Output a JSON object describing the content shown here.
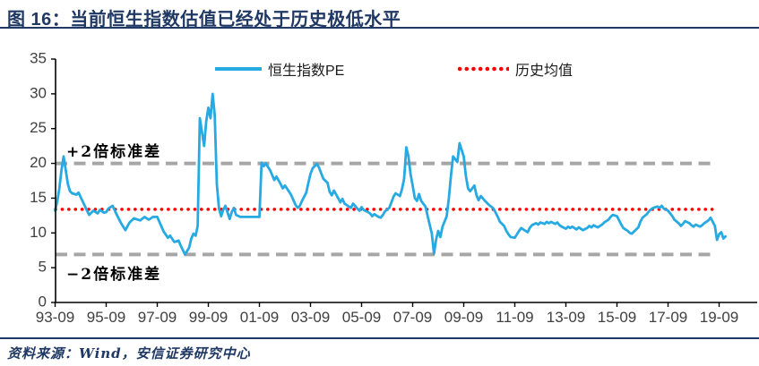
{
  "header": {
    "title": "图 16：当前恒生指数估值已经处于历史极低水平"
  },
  "footer": {
    "source": "资料来源：Wind，安信证券研究中心"
  },
  "legend": [
    {
      "label": "恒生指数PE",
      "color": "#27AAE1",
      "style": "solid"
    },
    {
      "label": "历史均值",
      "color": "#FF0000",
      "style": "dotted"
    }
  ],
  "annotations": {
    "upper": "+2倍标准差",
    "lower": "−2倍标准差"
  },
  "colors": {
    "series_blue": "#27AAE1",
    "mean_red": "#FF0000",
    "band_gray": "#A6A6A6",
    "axis_black": "#000000",
    "tick_text": "#404040",
    "title_navy": "#1F3864"
  },
  "chart_data": {
    "type": "line",
    "title": "当前恒生指数估值已经处于历史极低水平",
    "xlabel": "",
    "ylabel": "",
    "ylim": [
      0,
      35
    ],
    "y_ticks": [
      0,
      5,
      10,
      15,
      20,
      25,
      30,
      35
    ],
    "x_ticks": {
      "labels": [
        "93-09",
        "95-09",
        "97-09",
        "99-09",
        "01-09",
        "03-09",
        "05-09",
        "07-09",
        "09-09",
        "11-09",
        "13-09",
        "15-09",
        "17-09",
        "19-09"
      ],
      "month_offsets": [
        0,
        24,
        48,
        72,
        96,
        120,
        144,
        168,
        192,
        216,
        240,
        264,
        288,
        312
      ]
    },
    "x_start_label": "1993-09",
    "months_per_point_unit": 1,
    "reference_lines": {
      "mean_label": "历史均值",
      "mean_value": 13.4,
      "plus_2sd_label": "+2倍标准差",
      "plus_2sd_value": 20.0,
      "minus_2sd_label": "−2倍标准差",
      "minus_2sd_value": 6.9
    },
    "legend_position": "top",
    "grid": false,
    "series": [
      {
        "name": "恒生指数PE",
        "style": "solid",
        "points": [
          [
            0,
            13.2
          ],
          [
            1,
            14.5
          ],
          [
            2,
            16.5
          ],
          [
            3,
            19.0
          ],
          [
            4,
            21.0
          ],
          [
            6,
            17.0
          ],
          [
            7,
            16.0
          ],
          [
            8,
            15.7
          ],
          [
            10,
            15.5
          ],
          [
            11,
            15.8
          ],
          [
            13,
            14.5
          ],
          [
            15,
            13.2
          ],
          [
            16,
            12.6
          ],
          [
            18,
            13.2
          ],
          [
            20,
            12.8
          ],
          [
            21,
            13.3
          ],
          [
            23,
            12.9
          ],
          [
            24,
            13.0
          ],
          [
            25,
            13.5
          ],
          [
            27,
            13.9
          ],
          [
            29,
            12.6
          ],
          [
            31,
            11.4
          ],
          [
            33,
            10.4
          ],
          [
            35,
            11.5
          ],
          [
            37,
            12.1
          ],
          [
            40,
            11.8
          ],
          [
            42,
            12.3
          ],
          [
            44,
            11.9
          ],
          [
            46,
            12.3
          ],
          [
            48,
            12.3
          ],
          [
            49,
            11.6
          ],
          [
            51,
            10.2
          ],
          [
            53,
            9.3
          ],
          [
            54,
            9.6
          ],
          [
            56,
            8.7
          ],
          [
            58,
            8.9
          ],
          [
            59,
            8.2
          ],
          [
            61,
            6.9
          ],
          [
            63,
            7.9
          ],
          [
            64,
            9.2
          ],
          [
            65,
            9.9
          ],
          [
            66,
            9.6
          ],
          [
            67,
            11.0
          ],
          [
            68,
            26.5
          ],
          [
            69,
            24.5
          ],
          [
            70,
            22.5
          ],
          [
            71,
            26.0
          ],
          [
            72,
            28.0
          ],
          [
            73,
            26.5
          ],
          [
            74,
            30.0
          ],
          [
            75,
            27.0
          ],
          [
            76,
            17.0
          ],
          [
            77,
            13.5
          ],
          [
            78,
            12.4
          ],
          [
            79,
            13.3
          ],
          [
            80,
            13.9
          ],
          [
            82,
            12.0
          ],
          [
            83,
            13.0
          ],
          [
            84,
            13.6
          ],
          [
            85,
            12.6
          ],
          [
            87,
            12.3
          ],
          [
            96,
            12.3
          ],
          [
            97,
            20.1
          ],
          [
            98,
            19.6
          ],
          [
            99,
            20.0
          ],
          [
            101,
            19.0
          ],
          [
            102,
            18.3
          ],
          [
            103,
            17.6
          ],
          [
            104,
            18.1
          ],
          [
            106,
            17.0
          ],
          [
            107,
            16.4
          ],
          [
            108,
            16.8
          ],
          [
            110,
            15.9
          ],
          [
            111,
            15.4
          ],
          [
            112,
            14.7
          ],
          [
            113,
            14.0
          ],
          [
            114,
            13.6
          ],
          [
            115,
            13.9
          ],
          [
            116,
            14.6
          ],
          [
            118,
            15.8
          ],
          [
            119,
            17.2
          ],
          [
            120,
            18.5
          ],
          [
            121,
            19.3
          ],
          [
            123,
            19.9
          ],
          [
            124,
            19.4
          ],
          [
            125,
            18.6
          ],
          [
            126,
            17.8
          ],
          [
            128,
            17.2
          ],
          [
            129,
            15.9
          ],
          [
            130,
            15.4
          ],
          [
            131,
            16.1
          ],
          [
            133,
            15.0
          ],
          [
            134,
            14.4
          ],
          [
            135,
            14.9
          ],
          [
            136,
            14.2
          ],
          [
            138,
            13.8
          ],
          [
            139,
            13.6
          ],
          [
            140,
            14.2
          ],
          [
            142,
            13.5
          ],
          [
            143,
            13.2
          ],
          [
            144,
            13.7
          ],
          [
            145,
            13.3
          ],
          [
            147,
            13.0
          ],
          [
            148,
            12.8
          ],
          [
            149,
            12.4
          ],
          [
            150,
            12.7
          ],
          [
            152,
            12.3
          ],
          [
            153,
            12.2
          ],
          [
            154,
            12.6
          ],
          [
            155,
            13.1
          ],
          [
            157,
            13.6
          ],
          [
            158,
            14.4
          ],
          [
            159,
            15.2
          ],
          [
            160,
            15.7
          ],
          [
            162,
            15.3
          ],
          [
            163,
            16.3
          ],
          [
            164,
            17.8
          ],
          [
            165,
            22.3
          ],
          [
            166,
            21.0
          ],
          [
            167,
            18.5
          ],
          [
            168,
            16.8
          ],
          [
            169,
            15.0
          ],
          [
            170,
            14.6
          ],
          [
            171,
            15.6
          ],
          [
            172,
            14.6
          ],
          [
            174,
            13.8
          ],
          [
            175,
            12.5
          ],
          [
            176,
            11.2
          ],
          [
            177,
            9.9
          ],
          [
            178,
            7.0
          ],
          [
            179,
            9.0
          ],
          [
            180,
            10.3
          ],
          [
            181,
            9.4
          ],
          [
            182,
            10.9
          ],
          [
            184,
            12.4
          ],
          [
            185,
            15.0
          ],
          [
            186,
            18.3
          ],
          [
            187,
            21.0
          ],
          [
            189,
            20.2
          ],
          [
            190,
            22.9
          ],
          [
            192,
            21.0
          ],
          [
            193,
            18.2
          ],
          [
            194,
            16.4
          ],
          [
            195,
            16.0
          ],
          [
            197,
            16.8
          ],
          [
            198,
            15.4
          ],
          [
            199,
            14.7
          ],
          [
            200,
            15.3
          ],
          [
            202,
            14.6
          ],
          [
            203,
            14.3
          ],
          [
            204,
            14.0
          ],
          [
            206,
            13.5
          ],
          [
            207,
            12.9
          ],
          [
            208,
            12.3
          ],
          [
            209,
            11.6
          ],
          [
            211,
            11.0
          ],
          [
            212,
            10.3
          ],
          [
            213,
            9.8
          ],
          [
            214,
            9.4
          ],
          [
            216,
            9.3
          ],
          [
            217,
            9.8
          ],
          [
            218,
            10.3
          ],
          [
            219,
            10.7
          ],
          [
            221,
            10.3
          ],
          [
            222,
            10.1
          ],
          [
            223,
            10.7
          ],
          [
            224,
            11.1
          ],
          [
            226,
            11.4
          ],
          [
            227,
            11.2
          ],
          [
            228,
            11.5
          ],
          [
            230,
            11.3
          ],
          [
            231,
            11.6
          ],
          [
            232,
            11.4
          ],
          [
            233,
            11.6
          ],
          [
            235,
            11.3
          ],
          [
            236,
            11.5
          ],
          [
            237,
            11.1
          ],
          [
            238,
            10.9
          ],
          [
            240,
            10.6
          ],
          [
            241,
            10.9
          ],
          [
            242,
            10.7
          ],
          [
            243,
            10.9
          ],
          [
            245,
            10.5
          ],
          [
            246,
            10.8
          ],
          [
            247,
            10.6
          ],
          [
            248,
            10.4
          ],
          [
            250,
            10.7
          ],
          [
            251,
            11.0
          ],
          [
            252,
            10.8
          ],
          [
            253,
            11.1
          ],
          [
            255,
            10.8
          ],
          [
            256,
            11.0
          ],
          [
            257,
            11.2
          ],
          [
            258,
            11.5
          ],
          [
            260,
            11.9
          ],
          [
            261,
            12.3
          ],
          [
            262,
            12.6
          ],
          [
            264,
            12.4
          ],
          [
            265,
            11.8
          ],
          [
            266,
            11.2
          ],
          [
            267,
            10.7
          ],
          [
            269,
            10.3
          ],
          [
            270,
            10.0
          ],
          [
            271,
            9.9
          ],
          [
            272,
            10.2
          ],
          [
            274,
            10.8
          ],
          [
            275,
            11.6
          ],
          [
            276,
            12.2
          ],
          [
            278,
            12.7
          ],
          [
            279,
            13.1
          ],
          [
            280,
            13.4
          ],
          [
            281,
            13.6
          ],
          [
            283,
            13.8
          ],
          [
            284,
            13.6
          ],
          [
            285,
            13.9
          ],
          [
            286,
            13.5
          ],
          [
            288,
            13.2
          ],
          [
            289,
            12.8
          ],
          [
            290,
            12.4
          ],
          [
            291,
            11.9
          ],
          [
            293,
            11.4
          ],
          [
            294,
            11.0
          ],
          [
            295,
            11.3
          ],
          [
            296,
            11.7
          ],
          [
            298,
            11.4
          ],
          [
            299,
            11.1
          ],
          [
            300,
            10.9
          ],
          [
            301,
            11.2
          ],
          [
            303,
            10.9
          ],
          [
            304,
            11.1
          ],
          [
            305,
            11.4
          ],
          [
            307,
            11.8
          ],
          [
            308,
            12.2
          ],
          [
            309,
            11.6
          ],
          [
            310,
            11.0
          ],
          [
            311,
            9.0
          ],
          [
            312,
            9.8
          ],
          [
            313,
            10.1
          ],
          [
            314,
            9.2
          ],
          [
            315,
            9.5
          ]
        ]
      }
    ]
  }
}
